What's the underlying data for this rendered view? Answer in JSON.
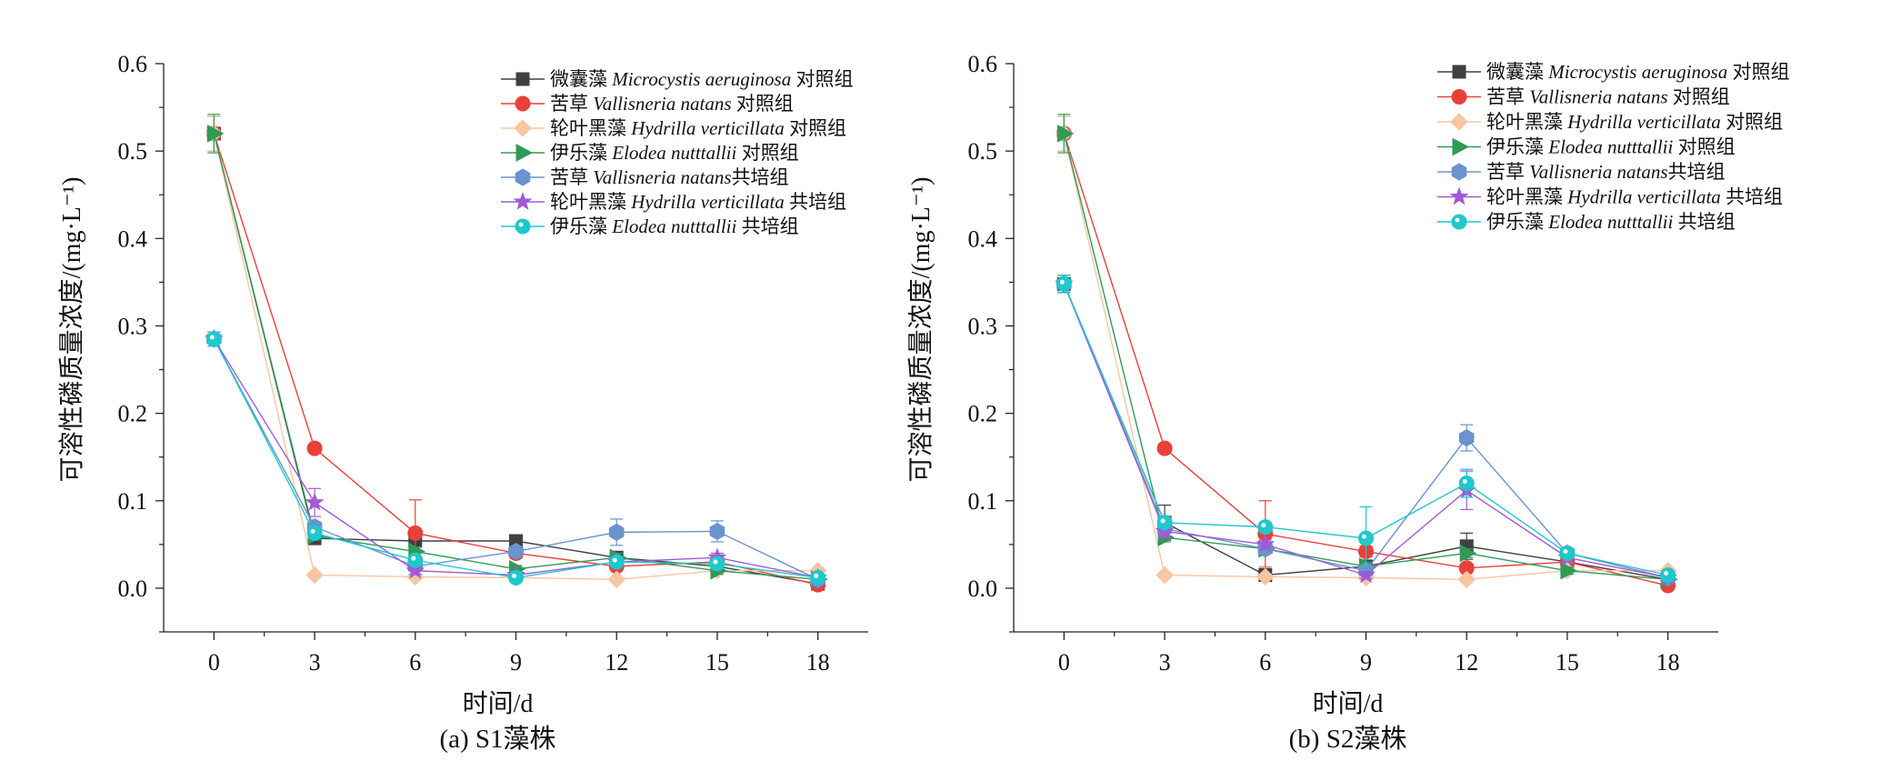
{
  "figure": {
    "panel_captions": [
      "(a) S1藻株",
      "(b) S2藻株"
    ]
  },
  "legend_symbols": {
    "微囊藻": "square",
    "苦草对照": "circle",
    "轮叶黑藻对照": "diamond",
    "伊乐藻对照": "triangle-right",
    "苦草共培": "hexagon",
    "轮叶黑藻共培": "star",
    "伊乐藻共培": "circle-dot"
  },
  "chart_data": [
    {
      "type": "line",
      "title": "",
      "caption": "(a) S1藻株",
      "xlabel": "时间/d",
      "ylabel": "可溶性磷质量浓度/(mg·L⁻¹)",
      "x": [
        0,
        3,
        6,
        9,
        12,
        15,
        18
      ],
      "xticks": [
        0,
        3,
        6,
        9,
        12,
        15,
        18
      ],
      "yticks": [
        "0.0",
        "0.1",
        "0.2",
        "0.3",
        "0.4",
        "0.5",
        "0.6"
      ],
      "xlim": [
        -1.5,
        19.5
      ],
      "ylim": [
        -0.05,
        0.6
      ],
      "legend_position": "top-right",
      "series": [
        {
          "name": "微囊藻 Microcystis aeruginosa 对照组",
          "cn": "微囊藻 ",
          "latin": "Microcystis aeruginosa",
          "suffix": " 对照组",
          "color": "#404040",
          "marker": "square",
          "values": [
            0.52,
            0.057,
            0.054,
            0.054,
            0.035,
            0.025,
            0.005
          ],
          "errors": [
            0.02,
            0.005,
            0.006,
            0.005,
            0.005,
            0.004,
            0.003
          ]
        },
        {
          "name": "苦草 Vallisneria natans 对照组",
          "cn": "苦草 ",
          "latin": "Vallisneria natans",
          "suffix": " 对照组",
          "color": "#e8413a",
          "marker": "circle",
          "values": [
            0.52,
            0.16,
            0.063,
            0.04,
            0.025,
            0.03,
            0.004
          ],
          "errors": [
            0.02,
            0.005,
            0.038,
            0.006,
            0.005,
            0.004,
            0.003
          ]
        },
        {
          "name": "轮叶黑藻 Hydrilla verticillata 对照组",
          "cn": "轮叶黑藻 ",
          "latin": "Hydrilla verticillata",
          "suffix": " 对照组",
          "color": "#f7c6a1",
          "marker": "diamond",
          "values": [
            0.52,
            0.015,
            0.013,
            0.012,
            0.01,
            0.02,
            0.02
          ],
          "errors": [
            0.02,
            0.003,
            0.003,
            0.003,
            0.003,
            0.003,
            0.003
          ]
        },
        {
          "name": "伊乐藻 Elodea nutttallii 对照组",
          "cn": "伊乐藻 ",
          "latin": "Elodea nutttallii",
          "suffix": " 对照组",
          "color": "#2e9b57",
          "marker": "triangle-right",
          "values": [
            0.52,
            0.06,
            0.042,
            0.022,
            0.035,
            0.02,
            0.01
          ],
          "errors": [
            0.022,
            0.005,
            0.005,
            0.004,
            0.005,
            0.004,
            0.003
          ]
        },
        {
          "name": "苦草 Vallisneria natans共培组",
          "cn": "苦草 ",
          "latin": "Vallisneria natans",
          "suffix": "共培组",
          "color": "#6a93cf",
          "marker": "hexagon",
          "values": [
            0.285,
            0.07,
            0.025,
            0.042,
            0.064,
            0.065,
            0.01
          ],
          "errors": [
            0.008,
            0.006,
            0.005,
            0.005,
            0.015,
            0.012,
            0.003
          ]
        },
        {
          "name": "轮叶黑藻 Hydrilla verticillata 共培组",
          "cn": "轮叶黑藻 ",
          "latin": "Hydrilla verticillata",
          "suffix": " 共培组",
          "color": "#a15ad6",
          "marker": "star",
          "values": [
            0.285,
            0.098,
            0.02,
            0.015,
            0.03,
            0.035,
            0.012
          ],
          "errors": [
            0.008,
            0.016,
            0.004,
            0.004,
            0.005,
            0.005,
            0.003
          ]
        },
        {
          "name": "伊乐藻 Elodea nutttallii 共培组",
          "cn": "伊乐藻 ",
          "latin": "Elodea nutttallii",
          "suffix": " 共培组",
          "color": "#1ec8cc",
          "marker": "circle-dot",
          "values": [
            0.285,
            0.063,
            0.032,
            0.012,
            0.03,
            0.028,
            0.012
          ],
          "errors": [
            0.008,
            0.006,
            0.005,
            0.004,
            0.005,
            0.005,
            0.003
          ]
        }
      ]
    },
    {
      "type": "line",
      "title": "",
      "caption": "(b) S2藻株",
      "xlabel": "时间/d",
      "ylabel": "可溶性磷质量浓度/(mg·L⁻¹)",
      "x": [
        0,
        3,
        6,
        9,
        12,
        15,
        18
      ],
      "xticks": [
        0,
        3,
        6,
        9,
        12,
        15,
        18
      ],
      "yticks": [
        "0.0",
        "0.1",
        "0.2",
        "0.3",
        "0.4",
        "0.5",
        "0.6"
      ],
      "xlim": [
        -1.5,
        19.5
      ],
      "ylim": [
        -0.05,
        0.6
      ],
      "legend_position": "top-right",
      "series": [
        {
          "name": "微囊藻 Microcystis aeruginosa 对照组",
          "cn": "微囊藻 ",
          "latin": "Microcystis aeruginosa",
          "suffix": " 对照组",
          "color": "#404040",
          "marker": "square",
          "values": [
            0.348,
            0.075,
            0.015,
            0.025,
            0.048,
            0.03,
            0.01
          ],
          "errors": [
            0.01,
            0.02,
            0.005,
            0.005,
            0.015,
            0.005,
            0.003
          ]
        },
        {
          "name": "苦草 Vallisneria natans 对照组",
          "cn": "苦草 ",
          "latin": "Vallisneria natans",
          "suffix": " 对照组",
          "color": "#e8413a",
          "marker": "circle",
          "values": [
            0.52,
            0.16,
            0.062,
            0.042,
            0.023,
            0.03,
            0.003
          ],
          "errors": [
            0.02,
            0.005,
            0.038,
            0.006,
            0.005,
            0.004,
            0.003
          ]
        },
        {
          "name": "轮叶黑藻 Hydrilla verticillata 对照组",
          "cn": "轮叶黑藻 ",
          "latin": "Hydrilla verticillata",
          "suffix": " 对照组",
          "color": "#f7c6a1",
          "marker": "diamond",
          "values": [
            0.52,
            0.015,
            0.013,
            0.012,
            0.01,
            0.02,
            0.02
          ],
          "errors": [
            0.02,
            0.003,
            0.003,
            0.003,
            0.003,
            0.003,
            0.003
          ]
        },
        {
          "name": "伊乐藻 Elodea nutttallii 对照组",
          "cn": "伊乐藻 ",
          "latin": "Elodea nutttallii",
          "suffix": " 对照组",
          "color": "#2e9b57",
          "marker": "triangle-right",
          "values": [
            0.52,
            0.058,
            0.045,
            0.025,
            0.04,
            0.02,
            0.01
          ],
          "errors": [
            0.022,
            0.005,
            0.005,
            0.005,
            0.005,
            0.004,
            0.003
          ]
        },
        {
          "name": "苦草 Vallisneria natans共培组",
          "cn": "苦草 ",
          "latin": "Vallisneria natans",
          "suffix": "共培组",
          "color": "#6a93cf",
          "marker": "hexagon",
          "values": [
            0.348,
            0.068,
            0.045,
            0.02,
            0.172,
            0.04,
            0.012
          ],
          "errors": [
            0.01,
            0.008,
            0.005,
            0.005,
            0.015,
            0.005,
            0.003
          ]
        },
        {
          "name": "轮叶黑藻 Hydrilla verticillata 共培组",
          "cn": "轮叶黑藻 ",
          "latin": "Hydrilla verticillata",
          "suffix": " 共培组",
          "color": "#a15ad6",
          "marker": "star",
          "values": [
            0.348,
            0.065,
            0.05,
            0.015,
            0.112,
            0.035,
            0.012
          ],
          "errors": [
            0.01,
            0.008,
            0.005,
            0.004,
            0.022,
            0.005,
            0.003
          ]
        },
        {
          "name": "伊乐藻 Elodea nutttallii 共培组",
          "cn": "伊乐藻 ",
          "latin": "Elodea nutttallii",
          "suffix": " 共培组",
          "color": "#1ec8cc",
          "marker": "circle-dot",
          "values": [
            0.348,
            0.075,
            0.07,
            0.057,
            0.12,
            0.04,
            0.015
          ],
          "errors": [
            0.01,
            0.006,
            0.005,
            0.036,
            0.016,
            0.005,
            0.003
          ]
        }
      ]
    }
  ]
}
